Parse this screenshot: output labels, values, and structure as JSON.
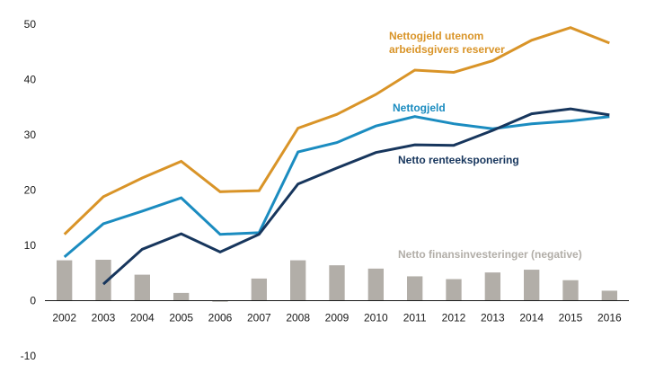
{
  "chart_data": {
    "type": "line",
    "categories": [
      "2002",
      "2003",
      "2004",
      "2005",
      "2006",
      "2007",
      "2008",
      "2009",
      "2010",
      "2011",
      "2012",
      "2013",
      "2014",
      "2015",
      "2016"
    ],
    "ylim": [
      -10,
      50
    ],
    "yticks": [
      -10,
      0,
      10,
      20,
      30,
      40,
      50
    ],
    "grid": false,
    "series": [
      {
        "name": "Nettogjeld utenom arbeidsgivers reserver",
        "label_lines": [
          "Nettogjeld utenom",
          "arbeidsgivers reserver"
        ],
        "kind": "line",
        "color": "#d99428",
        "values": [
          12.0,
          18.8,
          22.2,
          25.2,
          19.7,
          19.9,
          31.2,
          33.7,
          37.3,
          41.7,
          41.3,
          43.4,
          47.1,
          49.4,
          46.6
        ]
      },
      {
        "name": "Nettogjeld",
        "label_lines": [
          "Nettogjeld"
        ],
        "kind": "line",
        "color": "#1b8cc0",
        "values": [
          7.9,
          13.9,
          16.2,
          18.6,
          12.0,
          12.3,
          26.9,
          28.6,
          31.6,
          33.3,
          32.0,
          31.1,
          32.0,
          32.5,
          33.3
        ]
      },
      {
        "name": "Netto renteeksponering",
        "label_lines": [
          "Netto renteeksponering"
        ],
        "kind": "line",
        "color": "#17365d",
        "values": [
          null,
          3.0,
          9.3,
          12.1,
          8.8,
          12.0,
          21.1,
          24.0,
          26.8,
          28.2,
          28.1,
          30.8,
          33.8,
          34.7,
          33.6
        ]
      },
      {
        "name": "Netto finansinvesteringer (negative)",
        "label_lines": [
          "Netto finansinvesteringer (negative)"
        ],
        "kind": "bar",
        "color": "#b2aea8",
        "values": [
          7.3,
          7.4,
          4.7,
          1.4,
          -0.2,
          4.0,
          7.3,
          6.4,
          5.8,
          4.4,
          3.9,
          5.1,
          5.6,
          3.7,
          1.8
        ]
      }
    ]
  }
}
